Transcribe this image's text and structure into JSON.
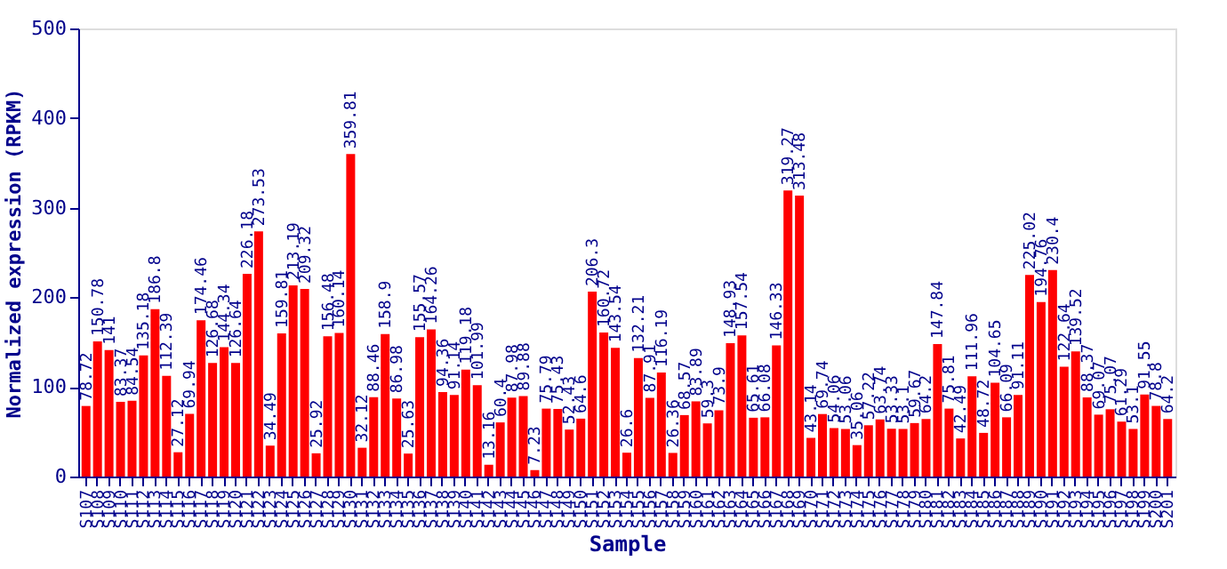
{
  "chart_data": {
    "type": "bar",
    "xlabel": "Sample",
    "ylabel": "Normalized expression (RPKM)",
    "categories": [
      "S107",
      "S108",
      "S109",
      "S110",
      "S111",
      "S112",
      "S113",
      "S114",
      "S115",
      "S116",
      "S117",
      "S118",
      "S119",
      "S120",
      "S121",
      "S122",
      "S123",
      "S124",
      "S125",
      "S126",
      "S127",
      "S128",
      "S129",
      "S130",
      "S131",
      "S132",
      "S133",
      "S134",
      "S135",
      "S136",
      "S137",
      "S138",
      "S139",
      "S140",
      "S141",
      "S142",
      "S143",
      "S144",
      "S145",
      "S146",
      "S147",
      "S148",
      "S149",
      "S150",
      "S151",
      "S152",
      "S153",
      "S154",
      "S155",
      "S156",
      "S157",
      "S158",
      "S159",
      "S160",
      "S161",
      "S162",
      "S163",
      "S164",
      "S165",
      "S166",
      "S167",
      "S168",
      "S169",
      "S170",
      "S171",
      "S172",
      "S173",
      "S174",
      "S175",
      "S176",
      "S177",
      "S178",
      "S179",
      "S180",
      "S181",
      "S182",
      "S183",
      "S184",
      "S185",
      "S186",
      "S187",
      "S188",
      "S189",
      "S190",
      "S191",
      "S192",
      "S193",
      "S194",
      "S195",
      "S196",
      "S197",
      "S198",
      "S199",
      "S200",
      "S201"
    ],
    "values": [
      78.72,
      150.78,
      141,
      83.37,
      84.54,
      135.18,
      186.8,
      112.39,
      27.12,
      69.94,
      174.46,
      126.68,
      144.34,
      126.64,
      226.18,
      273.53,
      34.49,
      159.81,
      213.19,
      209.32,
      25.92,
      156.48,
      160.14,
      359.81,
      32.12,
      88.46,
      158.9,
      86.98,
      25.63,
      155.57,
      164.26,
      94.36,
      91.14,
      119.18,
      101.99,
      13.16,
      60.4,
      87.98,
      89.88,
      7.23,
      75.79,
      75.43,
      52.43,
      64.6,
      206.3,
      160.72,
      143.54,
      26.6,
      132.21,
      87.91,
      116.19,
      26.36,
      68.57,
      83.89,
      59.3,
      73.9,
      148.93,
      157.54,
      65.61,
      66.08,
      146.33,
      319.27,
      313.48,
      43.14,
      69.74,
      54.06,
      53.06,
      35.06,
      57.22,
      63.74,
      53.33,
      53.1,
      59.67,
      64.2,
      147.84,
      75.81,
      42.49,
      111.96,
      48.72,
      104.65,
      66.09,
      91.11,
      225.02,
      194.76,
      230.4,
      122.64,
      139.52,
      88.37,
      69.07,
      75.07,
      61.29,
      53.1,
      91.55,
      78.8,
      64.2
    ],
    "color": "#ff0000",
    "data_labels": true,
    "ylim": [
      0,
      500
    ],
    "yticks": [
      0,
      100,
      200,
      300,
      400,
      500
    ],
    "grid": false
  }
}
